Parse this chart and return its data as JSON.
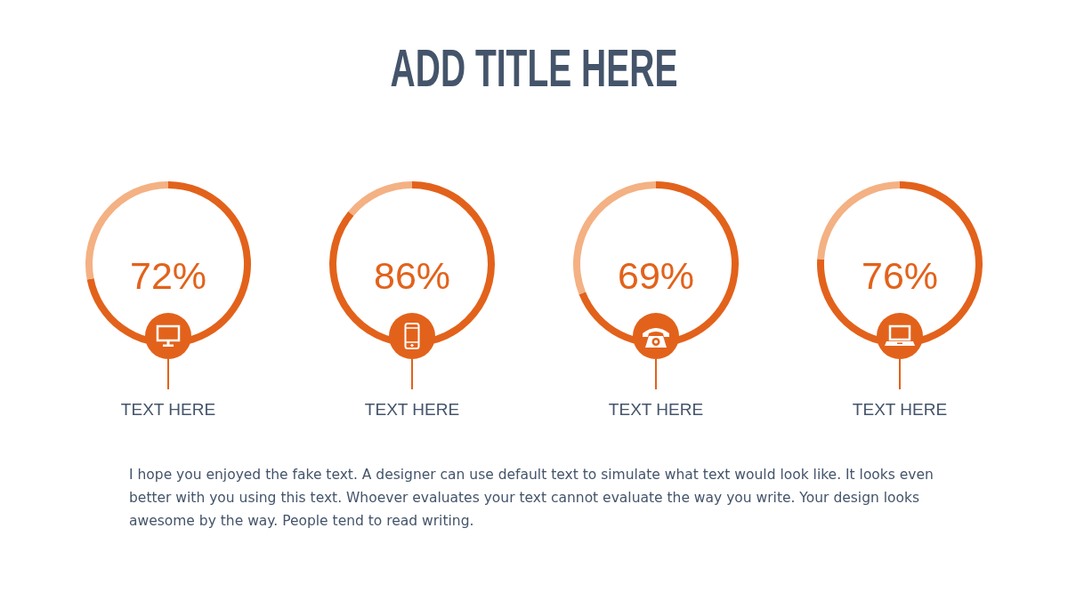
{
  "chart_data": [
    {
      "type": "other",
      "title": "ADD TITLE HERE"
    },
    {
      "type": "donut",
      "title": "TEXT HERE",
      "categories": [
        null,
        null
      ],
      "values": [
        72,
        28
      ],
      "colors": [
        "#e2621b",
        "#f4b183"
      ],
      "value_labels": [
        "72%",
        null
      ]
    },
    {
      "type": "donut",
      "title": "TEXT HERE",
      "categories": [
        null,
        null
      ],
      "values": [
        86,
        14
      ],
      "colors": [
        "#e2621b",
        "#f4b183"
      ],
      "value_labels": [
        "86%",
        null
      ]
    },
    {
      "type": "donut",
      "title": "TEXT HERE",
      "categories": [
        null,
        null
      ],
      "values": [
        69,
        31
      ],
      "colors": [
        "#e2621b",
        "#f4b183"
      ],
      "value_labels": [
        "69%",
        null
      ]
    },
    {
      "type": "donut",
      "title": "TEXT HERE",
      "categories": [
        null,
        null
      ],
      "values": [
        76,
        24
      ],
      "colors": [
        "#e2621b",
        "#f4b183"
      ],
      "value_labels": [
        "76%",
        null
      ]
    },
    {
      "type": "other",
      "annotations": [
        "I hope you enjoyed the fake text. A designer can use default text to simulate what text would look like. It looks even better with you using this text. Whoever evaluates your text cannot evaluate the way you write. Your design looks awesome by the way. People tend to read writing."
      ]
    }
  ]
}
